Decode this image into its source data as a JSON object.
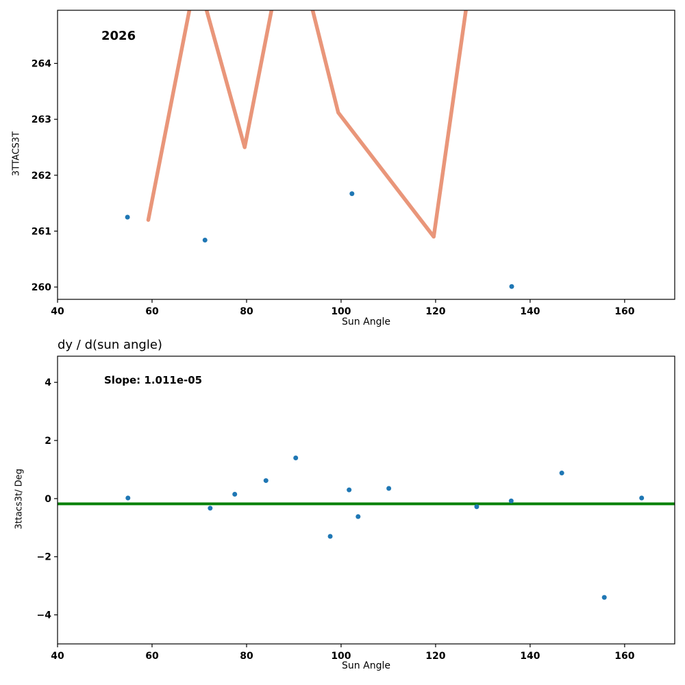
{
  "chart_data": [
    {
      "type": "scatter",
      "annotation": "2026",
      "xlabel": "Sun Angle",
      "ylabel": "3TTACS3T",
      "x_ticks": [
        40,
        60,
        80,
        100,
        120,
        140,
        160
      ],
      "y_ticks": [
        260,
        261,
        262,
        263,
        264
      ],
      "xlim": [
        40,
        170.6
      ],
      "ylim": [
        259.78,
        264.95
      ],
      "legend": "none",
      "grid": false,
      "scatter": {
        "color": "#1f77b4",
        "points": [
          [
            54.8,
            261.25
          ],
          [
            71.2,
            260.84
          ],
          [
            102.3,
            261.67
          ],
          [
            136.1,
            260.01
          ]
        ]
      },
      "fit_line": {
        "color": "#e9967a",
        "width": 5.5,
        "points": [
          [
            59.2,
            261.2
          ],
          [
            69.4,
            265.6
          ],
          [
            79.6,
            262.5
          ],
          [
            89.1,
            266.6
          ],
          [
            99.4,
            263.12
          ],
          [
            119.6,
            260.9
          ],
          [
            127.5,
            265.6
          ]
        ]
      }
    },
    {
      "type": "scatter",
      "title": "dy / d(sun angle)",
      "annotation": "Slope: 1.011e-05",
      "xlabel": "Sun Angle",
      "ylabel": "3ttacs3t/ Deg",
      "x_ticks": [
        40,
        60,
        80,
        100,
        120,
        140,
        160
      ],
      "y_ticks": [
        -4,
        -2,
        0,
        2,
        4
      ],
      "xlim": [
        40,
        170.6
      ],
      "ylim": [
        -5.0,
        4.9
      ],
      "legend": "none",
      "grid": false,
      "hline": {
        "color": "#008000",
        "y": -0.18,
        "width": 4
      },
      "scatter": {
        "color": "#1f77b4",
        "points": [
          [
            54.9,
            0.02
          ],
          [
            72.3,
            -0.33
          ],
          [
            77.5,
            0.15
          ],
          [
            84.1,
            0.62
          ],
          [
            90.4,
            1.4
          ],
          [
            97.7,
            -1.3
          ],
          [
            101.7,
            0.3
          ],
          [
            103.6,
            -0.62
          ],
          [
            110.1,
            0.35
          ],
          [
            128.7,
            -0.28
          ],
          [
            136.0,
            -0.08
          ],
          [
            146.7,
            0.88
          ],
          [
            155.7,
            -3.4
          ],
          [
            163.6,
            0.02
          ]
        ]
      }
    }
  ]
}
